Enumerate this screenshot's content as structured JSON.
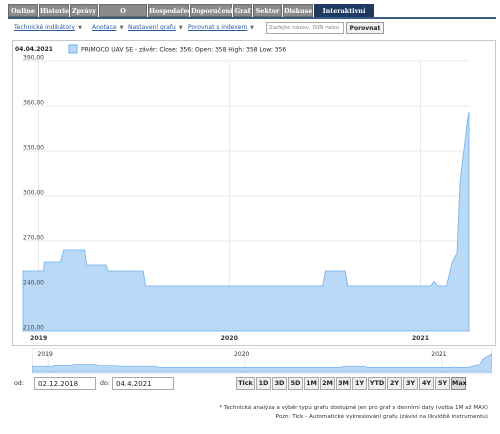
{
  "tabs": [
    {
      "label": "Online"
    },
    {
      "label": "Historie"
    },
    {
      "label": "Zprávy"
    },
    {
      "label": "O společnosti"
    },
    {
      "label": "Hospodaření"
    },
    {
      "label": "Doporučení"
    },
    {
      "label": "Graf"
    },
    {
      "label": "Sektor"
    },
    {
      "label": "Diskuse"
    },
    {
      "label": "Interaktivní graf",
      "active": true
    }
  ],
  "toolbar": {
    "menus": [
      "Technické indikátory",
      "Anotace",
      "Nastavení grafu",
      "Porovnat s indexem"
    ],
    "search_placeholder": "Zadejte název, ISIN nebo",
    "compare_label": "Porovnat"
  },
  "chart_data": {
    "type": "area",
    "date_label": "04.04.2021",
    "legend_text": "PRIMOCO UAV SE - závěr: Close: 356; Open: 358 High: 358 Low: 356",
    "series": [
      {
        "name": "PRIMOCO UAV SE"
      }
    ],
    "series_color": "#6fb0ea",
    "fill_color": "#b9d9f6",
    "y_ticks": [
      "390,00",
      "360,00",
      "330,00",
      "300,00",
      "270,00",
      "240,00",
      "210,00"
    ],
    "ylim": [
      210,
      390
    ],
    "x_ticks": [
      "2019",
      "2020",
      "2021"
    ],
    "xlim": [
      "2018-12-02",
      "2021-04-04"
    ],
    "grid": true,
    "points": [
      [
        "2018-12-02",
        250
      ],
      [
        "2019-01-10",
        250
      ],
      [
        "2019-01-12",
        256
      ],
      [
        "2019-02-12",
        256
      ],
      [
        "2019-02-18",
        264
      ],
      [
        "2019-03-30",
        264
      ],
      [
        "2019-04-03",
        254
      ],
      [
        "2019-05-10",
        254
      ],
      [
        "2019-05-14",
        250
      ],
      [
        "2019-07-20",
        250
      ],
      [
        "2019-07-25",
        240
      ],
      [
        "2020-06-28",
        240
      ],
      [
        "2020-07-03",
        250
      ],
      [
        "2020-08-10",
        250
      ],
      [
        "2020-08-15",
        240
      ],
      [
        "2021-01-20",
        240
      ],
      [
        "2021-01-27",
        243
      ],
      [
        "2021-02-03",
        240
      ],
      [
        "2021-02-20",
        240
      ],
      [
        "2021-03-03",
        256
      ],
      [
        "2021-03-12",
        262
      ],
      [
        "2021-03-18",
        310
      ],
      [
        "2021-03-25",
        330
      ],
      [
        "2021-04-01",
        350
      ],
      [
        "2021-04-04",
        356
      ]
    ]
  },
  "navigator": {
    "x_ticks": [
      "2019",
      "2020",
      "2021"
    ]
  },
  "range": {
    "from_label": "od:",
    "from_value": "02.12.2018",
    "to_label": "do:",
    "to_value": "04.4.2021",
    "periods": [
      "Tick",
      "1D",
      "3D",
      "5D",
      "1M",
      "2M",
      "3M",
      "1Y",
      "YTD",
      "2Y",
      "3Y",
      "4Y",
      "5Y",
      "Max"
    ],
    "active_period": "Max"
  },
  "notes": {
    "line1": "* Technická analýza a výběr typu grafu dostupné jen pro graf s denními daty (volba 1M až MAX)",
    "line2": "Pozn: Tick - Automatické vykreslování grafu (závisí na likviditě instrumentu)"
  }
}
